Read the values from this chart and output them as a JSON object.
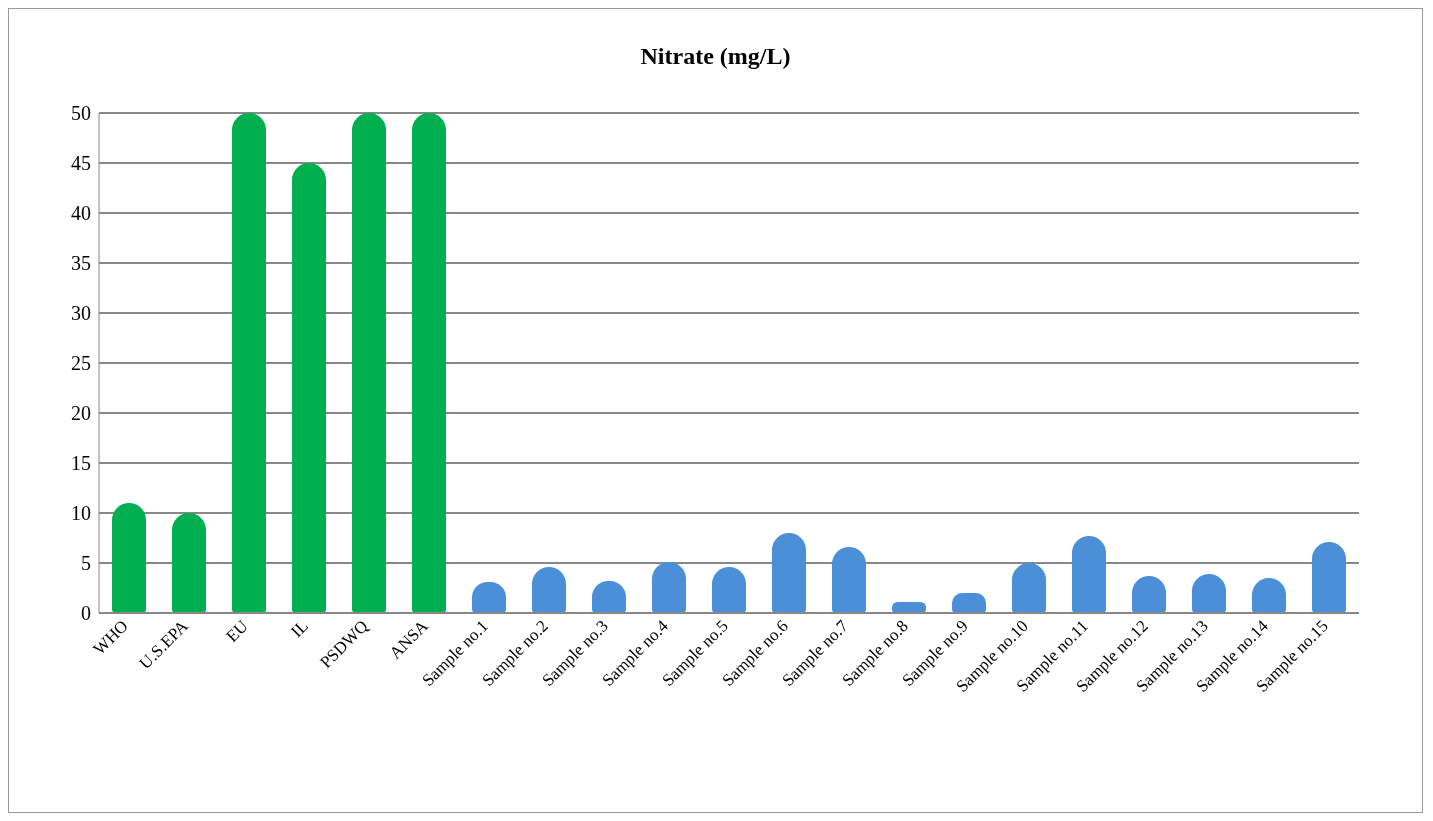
{
  "chart_data": {
    "type": "bar",
    "title": "Nitrate (mg/L)",
    "categories": [
      "WHO",
      "U.S.EPA",
      "EU",
      "IL",
      "PSDWQ",
      "ANSA",
      "Sample no.1",
      "Sample no.2",
      "Sample no.3",
      "Sample no.4",
      "Sample no.5",
      "Sample no.6",
      "Sample no.7",
      "Sample no.8",
      "Sample no.9",
      "Sample no.10",
      "Sample no.11",
      "Sample no.12",
      "Sample no.13",
      "Sample no.14",
      "Sample no.15"
    ],
    "values": [
      11,
      10,
      50,
      45,
      50,
      50,
      3.1,
      4.6,
      3.2,
      5.1,
      4.6,
      8.0,
      6.6,
      1.1,
      2.0,
      5.0,
      7.7,
      3.7,
      3.9,
      3.5,
      7.1
    ],
    "colors": [
      "#00b050",
      "#00b050",
      "#00b050",
      "#00b050",
      "#00b050",
      "#00b050",
      "#4a8fd8",
      "#4a8fd8",
      "#4a8fd8",
      "#4a8fd8",
      "#4a8fd8",
      "#4a8fd8",
      "#4a8fd8",
      "#4a8fd8",
      "#4a8fd8",
      "#4a8fd8",
      "#4a8fd8",
      "#4a8fd8",
      "#4a8fd8",
      "#4a8fd8",
      "#4a8fd8"
    ],
    "ylim": [
      0,
      50
    ],
    "yticks": [
      0,
      5,
      10,
      15,
      20,
      25,
      30,
      35,
      40,
      45,
      50
    ],
    "grid": "y"
  }
}
